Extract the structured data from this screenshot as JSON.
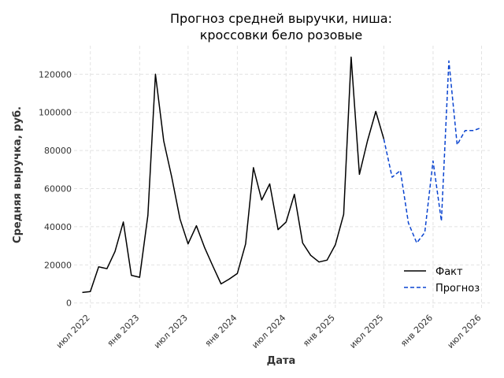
{
  "chart_data": {
    "type": "line",
    "title_lines": [
      "Прогноз средней выручки, ниша:",
      "кроссовки бело розовые"
    ],
    "xlabel": "Дата",
    "ylabel": "Средняя выручка, руб.",
    "x_ticks": [
      {
        "date": "2022-07-01",
        "label": "июл 2022"
      },
      {
        "date": "2023-01-01",
        "label": "янв 2023"
      },
      {
        "date": "2023-07-01",
        "label": "июл 2023"
      },
      {
        "date": "2024-01-01",
        "label": "янв 2024"
      },
      {
        "date": "2024-07-01",
        "label": "июл 2024"
      },
      {
        "date": "2025-01-01",
        "label": "янв 2025"
      },
      {
        "date": "2025-07-01",
        "label": "июл 2025"
      },
      {
        "date": "2026-01-01",
        "label": "янв 2026"
      },
      {
        "date": "2026-07-01",
        "label": "июл 2026"
      }
    ],
    "y_ticks": [
      0,
      20000,
      40000,
      60000,
      80000,
      100000,
      120000
    ],
    "xlim": [
      "2022-05-01",
      "2026-08-01"
    ],
    "ylim": [
      -3000,
      135000
    ],
    "grid": true,
    "legend_position": "lower-right",
    "series": [
      {
        "name": "Факт",
        "color": "#000000",
        "style": "solid",
        "points": [
          [
            "2022-06-01",
            5500
          ],
          [
            "2022-07-01",
            6000
          ],
          [
            "2022-08-01",
            19000
          ],
          [
            "2022-09-01",
            18000
          ],
          [
            "2022-10-01",
            27000
          ],
          [
            "2022-11-01",
            42500
          ],
          [
            "2022-12-01",
            14500
          ],
          [
            "2023-01-01",
            13500
          ],
          [
            "2023-02-01",
            46000
          ],
          [
            "2023-03-01",
            120000
          ],
          [
            "2023-04-01",
            85000
          ],
          [
            "2023-05-01",
            66000
          ],
          [
            "2023-06-01",
            44000
          ],
          [
            "2023-07-01",
            31000
          ],
          [
            "2023-08-01",
            40500
          ],
          [
            "2023-09-01",
            29000
          ],
          [
            "2023-10-01",
            19500
          ],
          [
            "2023-11-01",
            10000
          ],
          [
            "2023-12-01",
            12500
          ],
          [
            "2024-01-01",
            15500
          ],
          [
            "2024-02-01",
            31000
          ],
          [
            "2024-03-01",
            71000
          ],
          [
            "2024-04-01",
            54000
          ],
          [
            "2024-05-01",
            62500
          ],
          [
            "2024-06-01",
            38500
          ],
          [
            "2024-07-01",
            42500
          ],
          [
            "2024-08-01",
            57000
          ],
          [
            "2024-09-01",
            31500
          ],
          [
            "2024-10-01",
            25000
          ],
          [
            "2024-11-01",
            21500
          ],
          [
            "2024-12-01",
            22500
          ],
          [
            "2025-01-01",
            30500
          ],
          [
            "2025-02-01",
            46500
          ],
          [
            "2025-03-01",
            129000
          ],
          [
            "2025-04-01",
            67500
          ],
          [
            "2025-05-01",
            85000
          ],
          [
            "2025-06-01",
            100500
          ],
          [
            "2025-07-01",
            86000
          ]
        ]
      },
      {
        "name": "Прогноз",
        "color": "#0a44d0",
        "style": "dashed",
        "points": [
          [
            "2025-07-01",
            86000
          ],
          [
            "2025-08-01",
            66000
          ],
          [
            "2025-09-01",
            69500
          ],
          [
            "2025-10-01",
            42000
          ],
          [
            "2025-11-01",
            31500
          ],
          [
            "2025-12-01",
            37000
          ],
          [
            "2026-01-01",
            74500
          ],
          [
            "2026-02-01",
            43000
          ],
          [
            "2026-03-01",
            127000
          ],
          [
            "2026-04-01",
            83000
          ],
          [
            "2026-05-01",
            90500
          ],
          [
            "2026-06-01",
            90500
          ],
          [
            "2026-07-01",
            92000
          ]
        ]
      }
    ]
  }
}
